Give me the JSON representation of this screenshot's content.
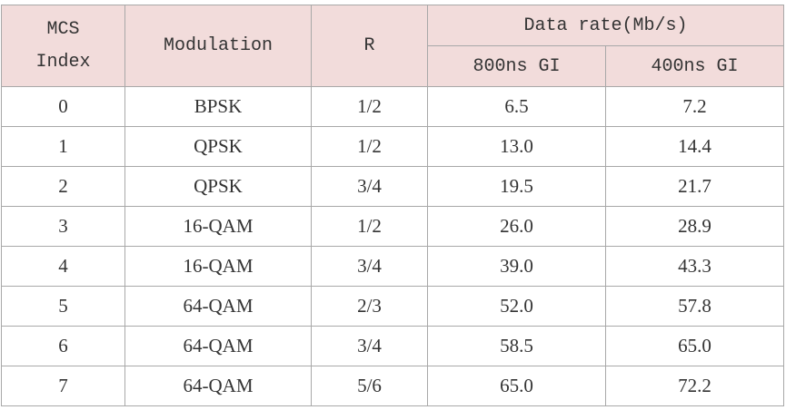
{
  "table": {
    "header": {
      "mcs": "MCS Index",
      "modulation": "Modulation",
      "r": "R",
      "data_rate": "Data rate(Mb/s)",
      "gi_800": "800ns GI",
      "gi_400": "400ns GI"
    },
    "rows": [
      [
        "0",
        "BPSK",
        "1/2",
        "6.5",
        "7.2"
      ],
      [
        "1",
        "QPSK",
        "1/2",
        "13.0",
        "14.4"
      ],
      [
        "2",
        "QPSK",
        "3/4",
        "19.5",
        "21.7"
      ],
      [
        "3",
        "16-QAM",
        "1/2",
        "26.0",
        "28.9"
      ],
      [
        "4",
        "16-QAM",
        "3/4",
        "39.0",
        "43.3"
      ],
      [
        "5",
        "64-QAM",
        "2/3",
        "52.0",
        "57.8"
      ],
      [
        "6",
        "64-QAM",
        "3/4",
        "58.5",
        "65.0"
      ],
      [
        "7",
        "64-QAM",
        "5/6",
        "65.0",
        "72.2"
      ]
    ]
  }
}
